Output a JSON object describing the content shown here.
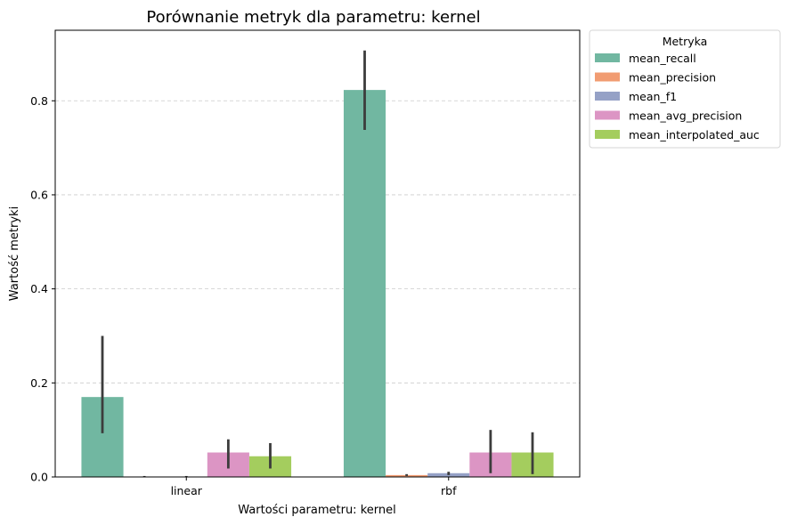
{
  "chart_data": {
    "type": "bar",
    "title": "Porównanie metryk dla parametru: kernel",
    "xlabel": "Wartości parametru: kernel",
    "ylabel": "Wartość metryki",
    "categories": [
      "linear",
      "rbf"
    ],
    "ylim": [
      0,
      0.95
    ],
    "yticks": [
      0.0,
      0.2,
      0.4,
      0.6,
      0.8
    ],
    "ytick_labels": [
      "0.0",
      "0.2",
      "0.4",
      "0.6",
      "0.8"
    ],
    "grid": "horizontal dashed",
    "legend_title": "Metryka",
    "legend_position": "outside top-right",
    "series": [
      {
        "name": "mean_recall",
        "color": "#71b7a1",
        "values": [
          0.17,
          0.823
        ],
        "err_low": [
          0.093,
          0.738
        ],
        "err_high": [
          0.3,
          0.907
        ]
      },
      {
        "name": "mean_precision",
        "color": "#f19c72",
        "values": [
          0.0,
          0.004
        ],
        "err_low": [
          0.0,
          0.002
        ],
        "err_high": [
          0.002,
          0.006
        ]
      },
      {
        "name": "mean_f1",
        "color": "#95a1c6",
        "values": [
          0.0,
          0.008
        ],
        "err_low": [
          0.0,
          0.004
        ],
        "err_high": [
          0.002,
          0.011
        ]
      },
      {
        "name": "mean_avg_precision",
        "color": "#dc95c4",
        "values": [
          0.052,
          0.052
        ],
        "err_low": [
          0.018,
          0.008
        ],
        "err_high": [
          0.08,
          0.1
        ]
      },
      {
        "name": "mean_interpolated_auc",
        "color": "#a4cd5e",
        "values": [
          0.044,
          0.052
        ],
        "err_low": [
          0.018,
          0.006
        ],
        "err_high": [
          0.072,
          0.095
        ]
      }
    ]
  }
}
